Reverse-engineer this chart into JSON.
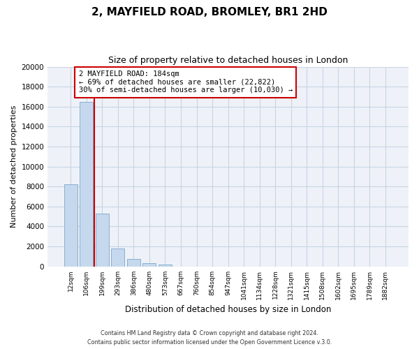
{
  "title": "2, MAYFIELD ROAD, BROMLEY, BR1 2HD",
  "subtitle": "Size of property relative to detached houses in London",
  "xlabel": "Distribution of detached houses by size in London",
  "ylabel": "Number of detached properties",
  "bar_labels": [
    "12sqm",
    "106sqm",
    "199sqm",
    "293sqm",
    "386sqm",
    "480sqm",
    "573sqm",
    "667sqm",
    "760sqm",
    "854sqm",
    "947sqm",
    "1041sqm",
    "1134sqm",
    "1228sqm",
    "1321sqm",
    "1415sqm",
    "1508sqm",
    "1602sqm",
    "1695sqm",
    "1789sqm",
    "1882sqm"
  ],
  "bar_values": [
    8200,
    16500,
    5300,
    1800,
    750,
    300,
    200,
    0,
    0,
    0,
    0,
    0,
    0,
    0,
    0,
    0,
    0,
    0,
    0,
    0,
    0
  ],
  "bar_color": "#c5d8ed",
  "bar_edge_color": "#8ab0d0",
  "property_label": "2 MAYFIELD ROAD: 184sqm",
  "annotation_line1": "← 69% of detached houses are smaller (22,822)",
  "annotation_line2": "30% of semi-detached houses are larger (10,030) →",
  "vline_color": "#cc0000",
  "annotation_box_facecolor": "#ffffff",
  "annotation_box_edgecolor": "#cc0000",
  "ylim": [
    0,
    20000
  ],
  "yticks": [
    0,
    2000,
    4000,
    6000,
    8000,
    10000,
    12000,
    14000,
    16000,
    18000,
    20000
  ],
  "footer1": "Contains HM Land Registry data © Crown copyright and database right 2024.",
  "footer2": "Contains public sector information licensed under the Open Government Licence v.3.0.",
  "bg_color": "#ffffff",
  "plot_bg_color": "#eef2f8",
  "grid_color": "#c8d4e4"
}
